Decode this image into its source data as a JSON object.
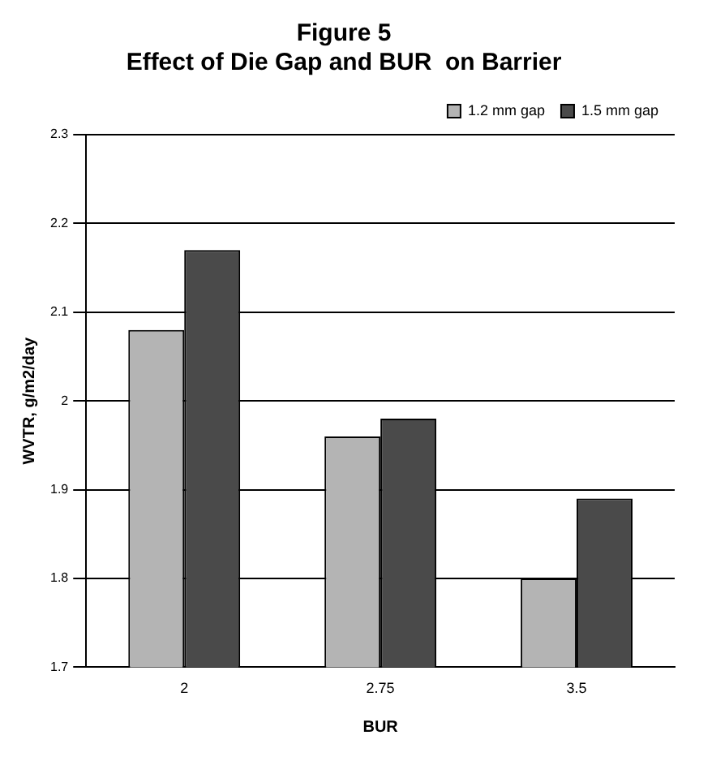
{
  "chart_data": {
    "type": "bar",
    "title": "Figure 5",
    "subtitle": "Effect of Die Gap and BUR  on Barrier",
    "xlabel": "BUR",
    "ylabel": "WVTR, g/m2/day",
    "categories": [
      "2",
      "2.75",
      "3.5"
    ],
    "series": [
      {
        "name": "1.2 mm gap",
        "color": "#b4b4b4",
        "values": [
          2.08,
          1.96,
          1.8
        ]
      },
      {
        "name": "1.5 mm gap",
        "color": "#4a4a4a",
        "values": [
          2.17,
          1.98,
          1.89
        ]
      }
    ],
    "ylim": [
      1.7,
      2.3
    ],
    "yticks": [
      1.7,
      1.8,
      1.9,
      2,
      2.1,
      2.2,
      2.3
    ],
    "grid": "y",
    "legend": "top right"
  }
}
